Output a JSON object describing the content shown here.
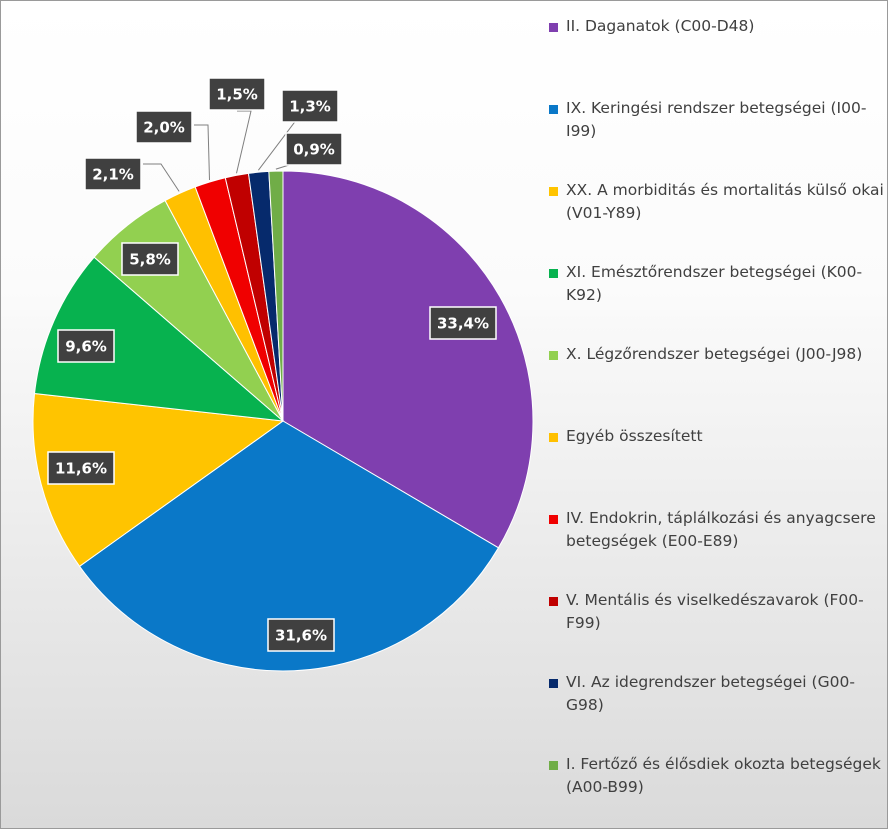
{
  "chart_data": {
    "type": "pie",
    "title": "",
    "legend_position": "right",
    "slices": [
      {
        "label": "II. Daganatok (C00-D48)",
        "value": 33.4,
        "display": "33,4%",
        "color": "#7F3FAF"
      },
      {
        "label": "IX. Keringési rendszer betegségei (I00-I99)",
        "value": 31.6,
        "display": "31,6%",
        "color": "#0A78C8"
      },
      {
        "label": "XX. A morbiditás és mortalitás külső okai (V01-Y89)",
        "value": 11.6,
        "display": "11,6%",
        "color": "#FFC400"
      },
      {
        "label": "XI. Emésztőrendszer betegségei (K00-K92)",
        "value": 9.6,
        "display": "9,6%",
        "color": "#07B24F"
      },
      {
        "label": "X. Légzőrendszer betegségei (J00-J98)",
        "value": 5.8,
        "display": "5,8%",
        "color": "#92D050"
      },
      {
        "label": "Egyéb összesített",
        "value": 2.1,
        "display": "2,1%",
        "color": "#FFC000"
      },
      {
        "label": "IV. Endokrin, táplálkozási és anyagcsere betegségek (E00-E89)",
        "value": 2.0,
        "display": "2,0%",
        "color": "#F00000"
      },
      {
        "label": "V. Mentális és viselkedészavarok (F00-F99)",
        "value": 1.5,
        "display": "1,5%",
        "color": "#C00000"
      },
      {
        "label": "VI. Az idegrendszer betegségei (G00-G98)",
        "value": 1.3,
        "display": "1,3%",
        "color": "#062A6C"
      },
      {
        "label": "I. Fertőző és élősdiek okozta betegségek  (A00-B99)",
        "value": 0.9,
        "display": "0,9%",
        "color": "#70AD47"
      }
    ]
  }
}
